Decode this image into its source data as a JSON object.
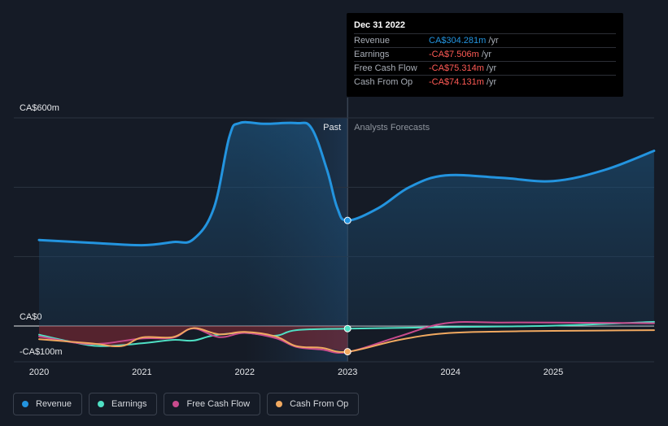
{
  "chart_data": {
    "type": "line",
    "y_axis": {
      "label_top": "CA$600m",
      "label_zero": "CA$0",
      "label_bottom": "-CA$100m",
      "ylim": [
        -100,
        600
      ]
    },
    "x_axis": {
      "ticks": [
        "2020",
        "2021",
        "2022",
        "2023",
        "2024",
        "2025"
      ],
      "xlim": [
        2019.8,
        2025.98
      ]
    },
    "divider": {
      "x": 2023.0,
      "past_label": "Past",
      "forecast_label": "Analysts Forecasts"
    },
    "series": [
      {
        "name": "Revenue",
        "color": "#2394df",
        "points": [
          [
            2020.0,
            248
          ],
          [
            2020.5,
            240
          ],
          [
            2021.0,
            233
          ],
          [
            2021.3,
            242
          ],
          [
            2021.5,
            250
          ],
          [
            2021.7,
            340
          ],
          [
            2021.85,
            545
          ],
          [
            2021.95,
            585
          ],
          [
            2022.2,
            583
          ],
          [
            2022.5,
            585
          ],
          [
            2022.65,
            570
          ],
          [
            2022.8,
            450
          ],
          [
            2022.9,
            340
          ],
          [
            2023.0,
            304.281
          ],
          [
            2023.3,
            340
          ],
          [
            2023.6,
            400
          ],
          [
            2023.95,
            434
          ],
          [
            2024.5,
            427
          ],
          [
            2025.0,
            418
          ],
          [
            2025.5,
            450
          ],
          [
            2025.98,
            505
          ]
        ]
      },
      {
        "name": "Earnings",
        "color": "#4fe0c4",
        "points": [
          [
            2020.0,
            -25
          ],
          [
            2020.3,
            -45
          ],
          [
            2020.6,
            -58
          ],
          [
            2021.0,
            -50
          ],
          [
            2021.3,
            -40
          ],
          [
            2021.5,
            -42
          ],
          [
            2021.7,
            -27
          ],
          [
            2022.0,
            -20
          ],
          [
            2022.3,
            -28
          ],
          [
            2022.5,
            -12
          ],
          [
            2023.0,
            -7.506
          ],
          [
            2024.0,
            -3
          ],
          [
            2025.0,
            1
          ],
          [
            2025.98,
            12
          ]
        ]
      },
      {
        "name": "Free Cash Flow",
        "color": "#c94b8d",
        "points": [
          [
            2020.0,
            -30
          ],
          [
            2020.5,
            -52
          ],
          [
            2021.0,
            -36
          ],
          [
            2021.3,
            -34
          ],
          [
            2021.5,
            -7
          ],
          [
            2021.75,
            -32
          ],
          [
            2022.0,
            -20
          ],
          [
            2022.3,
            -35
          ],
          [
            2022.5,
            -60
          ],
          [
            2022.75,
            -68
          ],
          [
            2023.0,
            -75.314
          ],
          [
            2023.5,
            -30
          ],
          [
            2023.95,
            8
          ],
          [
            2024.5,
            10
          ],
          [
            2025.0,
            10
          ],
          [
            2025.98,
            8
          ]
        ]
      },
      {
        "name": "Cash From Op",
        "color": "#f1a960",
        "points": [
          [
            2020.0,
            -38
          ],
          [
            2020.5,
            -50
          ],
          [
            2020.8,
            -58
          ],
          [
            2021.0,
            -33
          ],
          [
            2021.3,
            -32
          ],
          [
            2021.5,
            -6
          ],
          [
            2021.75,
            -24
          ],
          [
            2022.0,
            -17
          ],
          [
            2022.3,
            -30
          ],
          [
            2022.5,
            -58
          ],
          [
            2022.75,
            -63
          ],
          [
            2023.0,
            -74.131
          ],
          [
            2023.5,
            -40
          ],
          [
            2023.95,
            -21
          ],
          [
            2024.5,
            -16
          ],
          [
            2025.0,
            -14
          ],
          [
            2025.98,
            -12
          ]
        ]
      }
    ]
  },
  "tooltip": {
    "date": "Dec 31 2022",
    "unit": " /yr",
    "rows": [
      {
        "label": "Revenue",
        "value": "CA$304.281m",
        "color": "#2394df"
      },
      {
        "label": "Earnings",
        "value": "-CA$7.506m",
        "color": "#ff5a55"
      },
      {
        "label": "Free Cash Flow",
        "value": "-CA$75.314m",
        "color": "#ff5a55"
      },
      {
        "label": "Cash From Op",
        "value": "-CA$74.131m",
        "color": "#ff5a55"
      }
    ]
  },
  "legend": [
    {
      "label": "Revenue",
      "color": "#2394df"
    },
    {
      "label": "Earnings",
      "color": "#4fe0c4"
    },
    {
      "label": "Free Cash Flow",
      "color": "#c94b8d"
    },
    {
      "label": "Cash From Op",
      "color": "#f1a960"
    }
  ]
}
